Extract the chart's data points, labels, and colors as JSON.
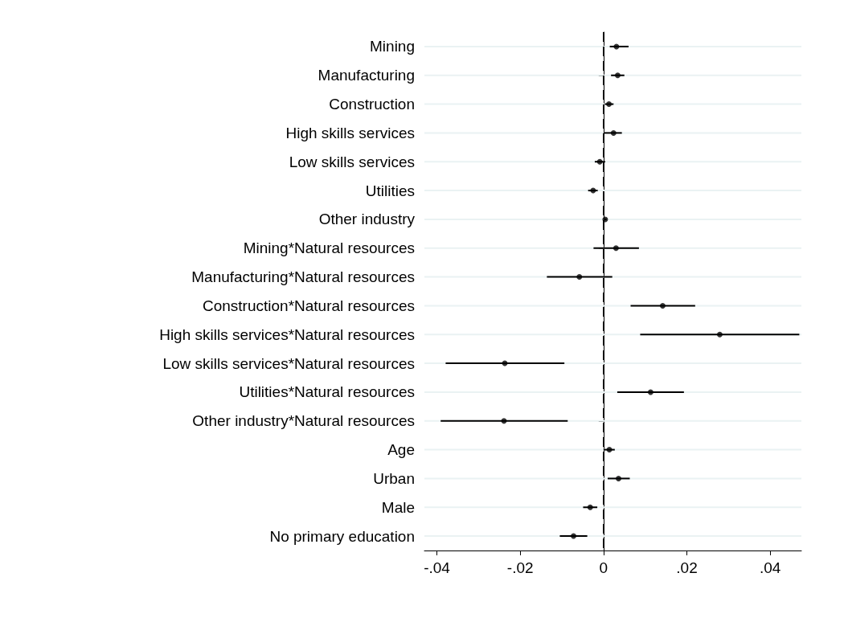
{
  "chart_data": {
    "type": "scatter",
    "orientation": "horizontal",
    "categories": [
      "Mining",
      "Manufacturing",
      "Construction",
      "High skills services",
      "Low skills services",
      "Utilities",
      "Other industry",
      "Mining*Natural resources",
      "Manufacturing*Natural resources",
      "Construction*Natural resources",
      "High skills services*Natural resources",
      "Low skills services*Natural resources",
      "Utilities*Natural resources",
      "Other industry*Natural resources",
      "Age",
      "Urban",
      "Male",
      "No primary education"
    ],
    "values": [
      0.0031,
      0.0034,
      0.0013,
      0.0024,
      -0.0009,
      -0.0025,
      0.0004,
      0.003,
      -0.0058,
      0.0142,
      0.0279,
      -0.0237,
      0.0113,
      -0.0239,
      0.0014,
      0.0036,
      -0.0032,
      -0.0072
    ],
    "errors": [
      [
        0.0015,
        0.006
      ],
      [
        0.0018,
        0.005
      ],
      [
        0.0003,
        0.0024
      ],
      [
        0,
        0.0044
      ],
      [
        -0.0021,
        0.0004
      ],
      [
        -0.0037,
        -0.0014
      ],
      [
        0.0001,
        0.0007
      ],
      [
        -0.0024,
        0.0085
      ],
      [
        -0.0136,
        0.0021
      ],
      [
        0.0065,
        0.022
      ],
      [
        0.0088,
        0.047
      ],
      [
        -0.0379,
        -0.0094
      ],
      [
        0.0033,
        0.0193
      ],
      [
        -0.0391,
        -0.0086
      ],
      [
        0,
        0.0027
      ],
      [
        0.001,
        0.0063
      ],
      [
        -0.0049,
        -0.0015
      ],
      [
        -0.0105,
        -0.0039
      ]
    ],
    "color": "#000000",
    "marker": "circle",
    "grid": "y",
    "xlim": [
      -0.043,
      0.0475
    ],
    "xticks": [
      {
        "value": -0.04,
        "label": "-.04"
      },
      {
        "value": -0.02,
        "label": "-.02"
      },
      0,
      {
        "value": 0.02,
        "label": ".02"
      },
      {
        "value": 0.04,
        "label": ".04"
      }
    ],
    "ref_lines": [
      {
        "axis": "x",
        "value": 0,
        "color": "#000000",
        "line_style": "dashed"
      }
    ]
  }
}
